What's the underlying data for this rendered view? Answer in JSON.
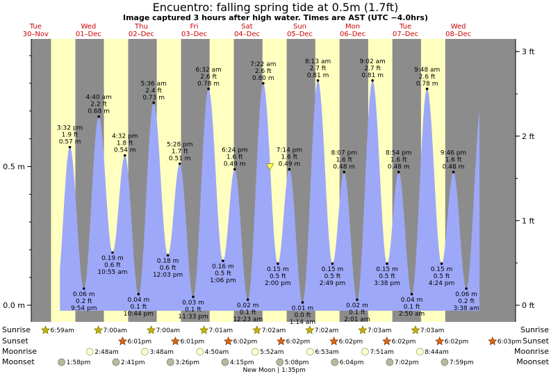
{
  "title": "Encuentro: falling  spring tide at 0.5m (1.7ft)",
  "subtitle": "Image captured 3 hours after high water. Times are AST (UTC −4.0hrs)",
  "colors": {
    "night": "#8c8c8c",
    "day": "#ffffc0",
    "tide_fill": "#9ea8f8",
    "date_text": "#cc0000",
    "sun_icon": "#c8b400",
    "sunset_icon": "#dd6a10",
    "moonrise_icon": "#ffffd0",
    "moonset_icon": "#b8b8a0"
  },
  "chart_data": {
    "type": "area",
    "title": "Encuentro: falling  spring tide at 0.5m (1.7ft)",
    "y_left_unit": "m",
    "y_right_unit": "ft",
    "y_left_ticks": [
      {
        "value": 0.0,
        "label": "0.0 m"
      },
      {
        "value": 0.5,
        "label": "0.5 m"
      }
    ],
    "y_right_ticks": [
      {
        "value": 0,
        "label": "0 ft"
      },
      {
        "value": 1,
        "label": "1 ft"
      },
      {
        "value": 2,
        "label": "2 ft"
      },
      {
        "value": 3,
        "label": "3 ft"
      }
    ],
    "ylim_m": [
      -0.06,
      0.96
    ],
    "xlim_hours": [
      -2,
      218
    ],
    "day_labels": [
      {
        "day": "Tue",
        "date": "30–Nov"
      },
      {
        "day": "Wed",
        "date": "01–Dec"
      },
      {
        "day": "Thu",
        "date": "02–Dec"
      },
      {
        "day": "Fri",
        "date": "03–Dec"
      },
      {
        "day": "Sat",
        "date": "04–Dec"
      },
      {
        "day": "Sun",
        "date": "05–Dec"
      },
      {
        "day": "Mon",
        "date": "06–Dec"
      },
      {
        "day": "Tue",
        "date": "07–Dec"
      },
      {
        "day": "Wed",
        "date": "08–Dec"
      }
    ],
    "extremes": [
      {
        "hour": 15.53,
        "m": 0.57,
        "time": "3:32 pm",
        "ft": "1.9 ft",
        "m_label": "0.57 m",
        "type": "high"
      },
      {
        "hour": 21.9,
        "m": 0.06,
        "time": "9:54 pm",
        "ft": "0.2 ft",
        "m_label": "0.06 m",
        "type": "low"
      },
      {
        "hour": 28.67,
        "m": 0.68,
        "time": "4:40 am",
        "ft": "2.2 ft",
        "m_label": "0.68 m",
        "type": "high"
      },
      {
        "hour": 34.92,
        "m": 0.19,
        "time": "10:55 am",
        "ft": "0.6 ft",
        "m_label": "0.19 m",
        "type": "low"
      },
      {
        "hour": 40.53,
        "m": 0.54,
        "time": "4:32 pm",
        "ft": "1.8 ft",
        "m_label": "0.54 m",
        "type": "high"
      },
      {
        "hour": 46.73,
        "m": 0.04,
        "time": "10:44 pm",
        "ft": "0.1 ft",
        "m_label": "0.04 m",
        "type": "low"
      },
      {
        "hour": 53.6,
        "m": 0.73,
        "time": "5:36 am",
        "ft": "2.4 ft",
        "m_label": "0.73 m",
        "type": "high"
      },
      {
        "hour": 60.05,
        "m": 0.18,
        "time": "12:03 pm",
        "ft": "0.6 ft",
        "m_label": "0.18 m",
        "type": "low"
      },
      {
        "hour": 65.47,
        "m": 0.51,
        "time": "5:28 pm",
        "ft": "1.7 ft",
        "m_label": "0.51 m",
        "type": "high"
      },
      {
        "hour": 71.55,
        "m": 0.03,
        "time": "11:33 pm",
        "ft": "0.1 ft",
        "m_label": "0.03 m",
        "type": "low"
      },
      {
        "hour": 78.53,
        "m": 0.78,
        "time": "6:32 am",
        "ft": "2.6 ft",
        "m_label": "0.78 m",
        "type": "high"
      },
      {
        "hour": 85.1,
        "m": 0.16,
        "time": "1:06 pm",
        "ft": "0.5 ft",
        "m_label": "0.16 m",
        "type": "low"
      },
      {
        "hour": 90.4,
        "m": 0.49,
        "time": "6:24 pm",
        "ft": "1.6 ft",
        "m_label": "0.49 m",
        "type": "high"
      },
      {
        "hour": 96.38,
        "m": 0.02,
        "time": "12:23 am",
        "ft": "0.1 ft",
        "m_label": "0.02 m",
        "type": "low"
      },
      {
        "hour": 103.37,
        "m": 0.8,
        "time": "7:22 am",
        "ft": "2.6 ft",
        "m_label": "0.80 m",
        "type": "high"
      },
      {
        "hour": 110.0,
        "m": 0.15,
        "time": "2:00 pm",
        "ft": "0.5 ft",
        "m_label": "0.15 m",
        "type": "low"
      },
      {
        "hour": 115.23,
        "m": 0.49,
        "time": "7:14 pm",
        "ft": "1.6 ft",
        "m_label": "0.49 m",
        "type": "high"
      },
      {
        "hour": 121.23,
        "m": 0.01,
        "time": "1:14 am",
        "ft": "0.0 ft",
        "m_label": "0.01 m",
        "type": "low"
      },
      {
        "hour": 128.22,
        "m": 0.81,
        "time": "8:13 am",
        "ft": "2.7 ft",
        "m_label": "0.81 m",
        "type": "high"
      },
      {
        "hour": 134.82,
        "m": 0.15,
        "time": "2:49 pm",
        "ft": "0.5 ft",
        "m_label": "0.15 m",
        "type": "low"
      },
      {
        "hour": 140.12,
        "m": 0.48,
        "time": "8:07 pm",
        "ft": "1.6 ft",
        "m_label": "0.48 m",
        "type": "high"
      },
      {
        "hour": 146.02,
        "m": 0.02,
        "time": "2:01 am",
        "ft": "0.1 ft",
        "m_label": "0.02 m",
        "type": "low"
      },
      {
        "hour": 153.03,
        "m": 0.81,
        "time": "9:02 am",
        "ft": "2.7 ft",
        "m_label": "0.81 m",
        "type": "high"
      },
      {
        "hour": 159.63,
        "m": 0.15,
        "time": "3:38 pm",
        "ft": "0.5 ft",
        "m_label": "0.15 m",
        "type": "low"
      },
      {
        "hour": 164.9,
        "m": 0.48,
        "time": "8:54 pm",
        "ft": "1.6 ft",
        "m_label": "0.48 m",
        "type": "high"
      },
      {
        "hour": 170.83,
        "m": 0.04,
        "time": "2:50 am",
        "ft": "0.1 ft",
        "m_label": "0.04 m",
        "type": "low"
      },
      {
        "hour": 177.8,
        "m": 0.78,
        "time": "9:48 am",
        "ft": "2.6 ft",
        "m_label": "0.78 m",
        "type": "high"
      },
      {
        "hour": 184.4,
        "m": 0.15,
        "time": "4:24 pm",
        "ft": "0.5 ft",
        "m_label": "0.15 m",
        "type": "low"
      },
      {
        "hour": 189.77,
        "m": 0.48,
        "time": "9:46 pm",
        "ft": "1.6 ft",
        "m_label": "0.48 m",
        "type": "high"
      },
      {
        "hour": 195.63,
        "m": 0.06,
        "time": "3:38 am",
        "ft": "0.2 ft",
        "m_label": "0.06 m",
        "type": "low"
      }
    ],
    "current": {
      "hour": 106.4,
      "m": 0.5,
      "label": "falling spring tide at 0.5m (1.7ft)"
    },
    "sun": [
      {
        "sunrise_hour": 6.98,
        "sunrise": "6:59am",
        "sunset_hour": 42.02,
        "sunset": "6:01pm"
      },
      {
        "sunrise_hour": 31.0,
        "sunrise": "7:00am",
        "sunset_hour": 66.02,
        "sunset": "6:01pm"
      },
      {
        "sunrise_hour": 55.0,
        "sunrise": "7:00am",
        "sunset_hour": 90.03,
        "sunset": "6:02pm"
      },
      {
        "sunrise_hour": 79.02,
        "sunrise": "7:01am",
        "sunset_hour": 114.03,
        "sunset": "6:02pm"
      },
      {
        "sunrise_hour": 103.03,
        "sunrise": "7:02am",
        "sunset_hour": 138.03,
        "sunset": "6:02pm"
      },
      {
        "sunrise_hour": 127.03,
        "sunrise": "7:02am",
        "sunset_hour": 162.03,
        "sunset": "6:02pm"
      },
      {
        "sunrise_hour": 151.05,
        "sunrise": "7:03am",
        "sunset_hour": 186.03,
        "sunset": "6:02pm"
      },
      {
        "sunrise_hour": 175.05,
        "sunrise": "7:03am",
        "sunset_hour": 210.05,
        "sunset": "6:03pm"
      }
    ],
    "moonrise": [
      {
        "hour": 26.8,
        "time": "2:48am"
      },
      {
        "hour": 51.8,
        "time": "3:48am"
      },
      {
        "hour": 76.83,
        "time": "4:50am"
      },
      {
        "hour": 101.87,
        "time": "5:52am"
      },
      {
        "hour": 126.88,
        "time": "6:53am"
      },
      {
        "hour": 151.85,
        "time": "7:51am"
      },
      {
        "hour": 176.73,
        "time": "8:44am"
      }
    ],
    "moonset": [
      {
        "hour": 13.97,
        "time": "1:58pm"
      },
      {
        "hour": 38.68,
        "time": "2:41pm"
      },
      {
        "hour": 63.43,
        "time": "3:26pm"
      },
      {
        "hour": 88.25,
        "time": "4:15pm"
      },
      {
        "hour": 113.13,
        "time": "5:08pm"
      },
      {
        "hour": 138.07,
        "time": "6:04pm"
      },
      {
        "hour": 163.03,
        "time": "7:02pm"
      },
      {
        "hour": 187.98,
        "time": "7:59pm"
      }
    ],
    "row_labels": {
      "sunrise": "Sunrise",
      "sunset": "Sunset",
      "moonrise": "Moonrise",
      "moonset": "Moonset"
    },
    "moon_phase": {
      "label": "New Moon | 1:35pm",
      "hour": 109.0
    }
  }
}
